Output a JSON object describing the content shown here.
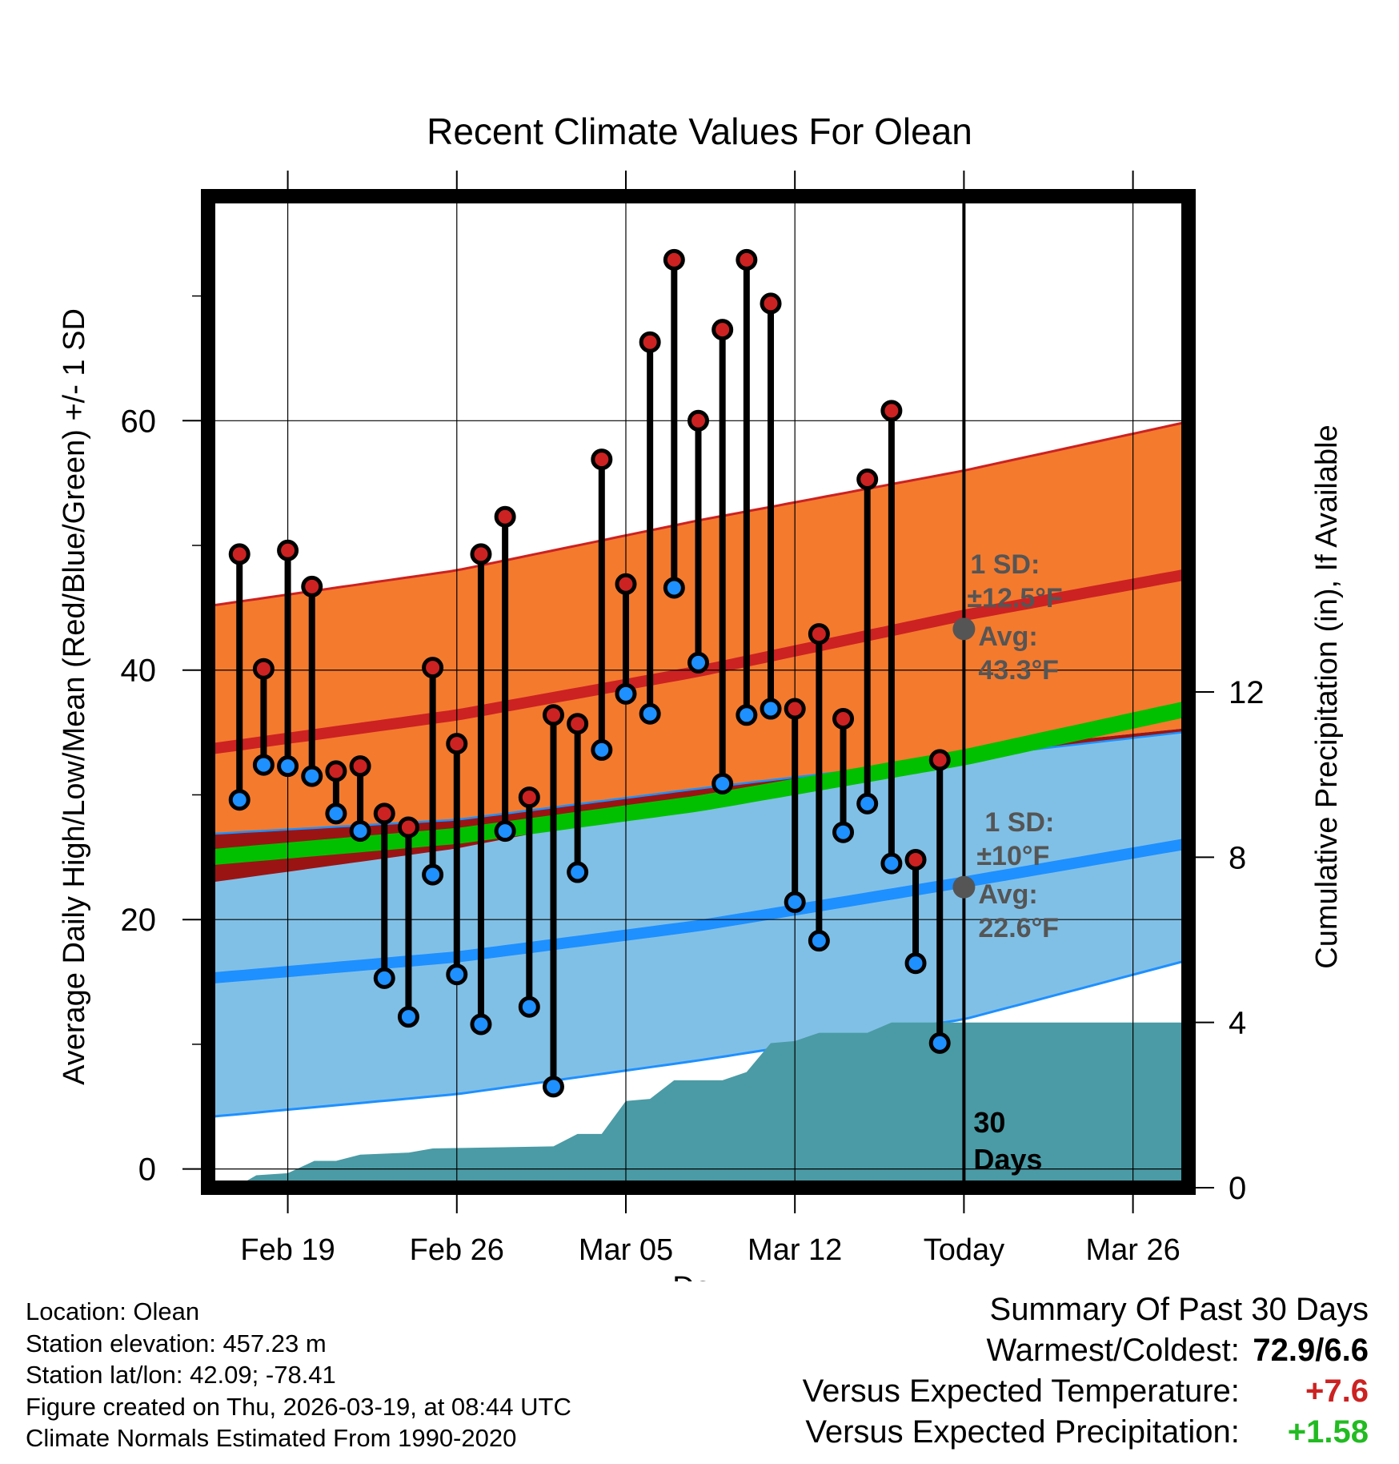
{
  "chart_data": {
    "type": "climate_range",
    "title": "Recent Climate Values For Olean",
    "xlabel": "Day",
    "ylabel": "Average Daily High/Low/Mean (Red/Blue/Green) +/- 1 SD",
    "y2label": "Cumulative Precipitation (in), If Available",
    "ylim": [
      -1.5,
      78
    ],
    "y2lim": [
      0,
      24
    ],
    "xlim": [
      -3.3,
      37.3
    ],
    "x_ticks": [
      {
        "day": 0,
        "label": "Feb 19"
      },
      {
        "day": 7,
        "label": "Feb 26"
      },
      {
        "day": 14,
        "label": "Mar 05"
      },
      {
        "day": 21,
        "label": "Mar 12"
      },
      {
        "day": 28,
        "label": "Today"
      },
      {
        "day": 35,
        "label": "Mar 26"
      }
    ],
    "y_ticks": [
      0,
      20,
      40,
      60
    ],
    "y2_ticks": [
      0,
      4,
      8,
      12
    ],
    "today_day": 28,
    "days_label": "30\nDays",
    "normals": {
      "high_mean": [
        34.0,
        36.4,
        39.9,
        44.4,
        47.6
      ],
      "high_upper": [
        45.5,
        48.0,
        52.0,
        56.0,
        59.8
      ],
      "high_lower": [
        23.3,
        25.7,
        29.5,
        33.5,
        35.3
      ],
      "low_mean": [
        15.5,
        17.0,
        19.5,
        23.0,
        26.0
      ],
      "low_upper": [
        27.0,
        28.0,
        30.5,
        33.0,
        35.0
      ],
      "low_lower": [
        4.4,
        6.0,
        8.7,
        12.0,
        16.6
      ],
      "avg_mean": [
        25.2,
        26.7,
        29.3,
        33.0,
        36.8
      ],
      "curve_days": [
        -2,
        7,
        17,
        28,
        37
      ]
    },
    "high_annotation": {
      "sd_label": "1 SD:",
      "sd_value": "±12.5°F",
      "avg_label": "Avg:",
      "avg_value": "43.3°F",
      "avg": 43.3
    },
    "low_annotation": {
      "sd_label": "1 SD:",
      "sd_value": "±10°F",
      "avg_label": "Avg:",
      "avg_value": "22.6°F",
      "avg": 22.6
    },
    "daily": [
      {
        "day": -2,
        "high": 49.3,
        "low": 29.6
      },
      {
        "day": -1,
        "high": 40.1,
        "low": 32.4
      },
      {
        "day": 0,
        "high": 49.6,
        "low": 32.3
      },
      {
        "day": 1,
        "high": 46.7,
        "low": 31.5
      },
      {
        "day": 2,
        "high": 31.9,
        "low": 28.5
      },
      {
        "day": 3,
        "high": 32.3,
        "low": 27.1
      },
      {
        "day": 4,
        "high": 28.5,
        "low": 15.3
      },
      {
        "day": 5,
        "high": 27.4,
        "low": 12.2
      },
      {
        "day": 6,
        "high": 40.2,
        "low": 23.6
      },
      {
        "day": 7,
        "high": 34.1,
        "low": 15.6
      },
      {
        "day": 8,
        "high": 49.3,
        "low": 11.6
      },
      {
        "day": 9,
        "high": 52.3,
        "low": 27.1
      },
      {
        "day": 10,
        "high": 29.8,
        "low": 13.0
      },
      {
        "day": 11,
        "high": 36.4,
        "low": 6.6
      },
      {
        "day": 12,
        "high": 35.7,
        "low": 23.8
      },
      {
        "day": 13,
        "high": 56.9,
        "low": 33.6
      },
      {
        "day": 14,
        "high": 46.9,
        "low": 38.1
      },
      {
        "day": 15,
        "high": 66.3,
        "low": 36.5
      },
      {
        "day": 16,
        "high": 72.9,
        "low": 46.6
      },
      {
        "day": 17,
        "high": 60.0,
        "low": 40.6
      },
      {
        "day": 18,
        "high": 67.3,
        "low": 30.9
      },
      {
        "day": 19,
        "high": 72.9,
        "low": 36.4
      },
      {
        "day": 20,
        "high": 69.4,
        "low": 36.9
      },
      {
        "day": 21,
        "high": 36.9,
        "low": 21.4
      },
      {
        "day": 22,
        "high": 42.9,
        "low": 18.3
      },
      {
        "day": 23,
        "high": 36.1,
        "low": 27.0
      },
      {
        "day": 24,
        "high": 55.3,
        "low": 29.3
      },
      {
        "day": 25,
        "high": 60.8,
        "low": 24.5
      },
      {
        "day": 26,
        "high": 24.8,
        "low": 16.5
      },
      {
        "day": 27,
        "high": 32.8,
        "low": 10.1
      }
    ],
    "precip_steps": [
      {
        "day": -3.3,
        "value": 0.0
      },
      {
        "day": -2.2,
        "value": 0.0
      },
      {
        "day": -1.3,
        "value": 0.3
      },
      {
        "day": 0.0,
        "value": 0.35
      },
      {
        "day": 1.1,
        "value": 0.65
      },
      {
        "day": 2.0,
        "value": 0.65
      },
      {
        "day": 3.0,
        "value": 0.8
      },
      {
        "day": 5.0,
        "value": 0.85
      },
      {
        "day": 6.0,
        "value": 0.95
      },
      {
        "day": 11.0,
        "value": 1.0
      },
      {
        "day": 12.0,
        "value": 1.3
      },
      {
        "day": 13.0,
        "value": 1.3
      },
      {
        "day": 14.0,
        "value": 2.1
      },
      {
        "day": 15.0,
        "value": 2.15
      },
      {
        "day": 16.0,
        "value": 2.6
      },
      {
        "day": 18.0,
        "value": 2.6
      },
      {
        "day": 19.0,
        "value": 2.8
      },
      {
        "day": 20.0,
        "value": 3.5
      },
      {
        "day": 21.0,
        "value": 3.55
      },
      {
        "day": 22.0,
        "value": 3.75
      },
      {
        "day": 24.0,
        "value": 3.75
      },
      {
        "day": 25.0,
        "value": 4.0
      },
      {
        "day": 26.0,
        "value": 4.0
      },
      {
        "day": 27.0,
        "value": 4.0
      },
      {
        "day": 37.3,
        "value": 4.0
      }
    ],
    "colors": {
      "high_band": "#f47a2e",
      "high_line": "#cc2222",
      "low_band": "#81c0e6",
      "low_line": "#1e90ff",
      "mean_line": "#00c000",
      "overlap": "#9b1414",
      "precip": "#4a9ba5",
      "high_dot": "#cc2222",
      "low_dot": "#1e90ff",
      "annotation": "#555555"
    }
  },
  "footer": {
    "location": "Location: Olean",
    "elevation": "Station elevation: 457.23 m",
    "latlon": "Station lat/lon: 42.09; -78.41",
    "created": "Figure created on Thu, 2026-03-19, at 08:44 UTC",
    "normals": "Climate Normals Estimated From 1990-2020"
  },
  "summary": {
    "title": "Summary Of Past 30 Days",
    "warmest_label": "Warmest/Coldest:",
    "warmest_value": "72.9/6.6",
    "temp_label": "Versus Expected Temperature:",
    "temp_value": "+7.6",
    "temp_color": "#cc2222",
    "precip_label": "Versus Expected Precipitation:",
    "precip_value": "+1.58",
    "precip_color": "#22bb22"
  }
}
